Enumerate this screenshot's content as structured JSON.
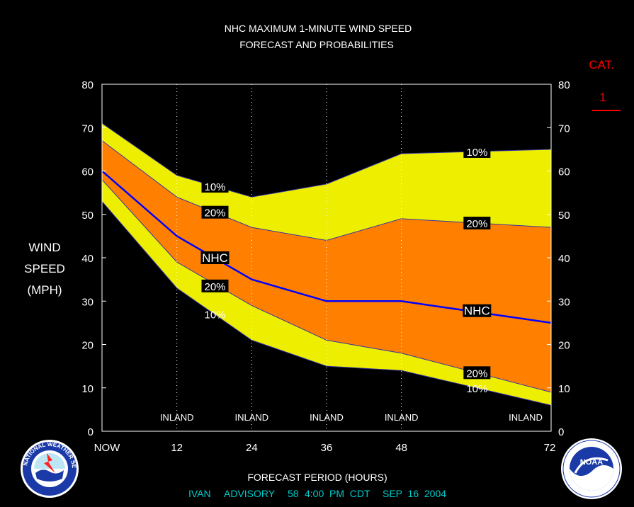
{
  "title_line1": "NHC MAXIMUM 1-MINUTE WIND SPEED",
  "title_line2": "FORECAST AND PROBABILITIES",
  "cat_label": "CAT.",
  "cat_value": "1",
  "ylabel_lines": [
    "WIND",
    "SPEED",
    "(MPH)"
  ],
  "xlabel": "FORECAST PERIOD (HOURS)",
  "advisory": {
    "storm": "IVAN",
    "label": "ADVISORY",
    "number": "58",
    "time": "4:00  PM  CDT",
    "date": "SEP  16  2004"
  },
  "logos": {
    "left_text": "NATIONAL WEATHER SERVICE",
    "right_text": "NOAA"
  },
  "colors": {
    "background": "#000000",
    "outer_band": "#eeee00",
    "inner_band": "#ff8000",
    "nhc_line": "#0000ff",
    "title_text": "#ffffff",
    "cat_text": "#ff0000",
    "advisory_text": "#00cccc"
  },
  "chart_data": {
    "type": "area",
    "x": [
      0,
      12,
      24,
      36,
      48,
      72
    ],
    "x_tick_labels": [
      "NOW",
      "12",
      "24",
      "36",
      "48",
      "72"
    ],
    "xlim": [
      0,
      72
    ],
    "ylim": [
      0,
      80
    ],
    "y_ticks": [
      0,
      10,
      20,
      30,
      40,
      50,
      60,
      70,
      80
    ],
    "grid": "vertical dotted lines at 12, 24, 36, 48",
    "inland_markers": [
      12,
      24,
      36,
      48,
      72
    ],
    "inland_label": "INLAND",
    "series": [
      {
        "name": "10%",
        "role": "upper",
        "values": [
          71,
          59,
          54,
          57,
          64,
          65
        ]
      },
      {
        "name": "20%",
        "role": "upper",
        "values": [
          67,
          54,
          47,
          44,
          49,
          47
        ]
      },
      {
        "name": "NHC",
        "role": "forecast",
        "values": [
          60,
          45,
          35,
          30,
          30,
          25
        ]
      },
      {
        "name": "20%",
        "role": "lower",
        "values": [
          58,
          39,
          29,
          21,
          18,
          9
        ]
      },
      {
        "name": "10%",
        "role": "lower",
        "values": [
          53,
          33,
          21,
          15,
          14,
          6
        ]
      }
    ],
    "annotations": [
      {
        "text": "10%",
        "x": 18,
        "y": 56.5,
        "boxed": true
      },
      {
        "text": "20%",
        "x": 18,
        "y": 50.5,
        "boxed": true
      },
      {
        "text": "NHC",
        "x": 18,
        "y": 40,
        "boxed": true
      },
      {
        "text": "20%",
        "x": 18,
        "y": 33.5,
        "boxed": true
      },
      {
        "text": "10%",
        "x": 18,
        "y": 27,
        "boxed": false
      },
      {
        "text": "10%",
        "x": 60,
        "y": 64.5,
        "boxed": true
      },
      {
        "text": "20%",
        "x": 60,
        "y": 48,
        "boxed": true
      },
      {
        "text": "NHC",
        "x": 60,
        "y": 27.8,
        "boxed": true
      },
      {
        "text": "20%",
        "x": 60,
        "y": 13.5,
        "boxed": true
      },
      {
        "text": "10%",
        "x": 60,
        "y": 10,
        "boxed": false
      }
    ]
  }
}
